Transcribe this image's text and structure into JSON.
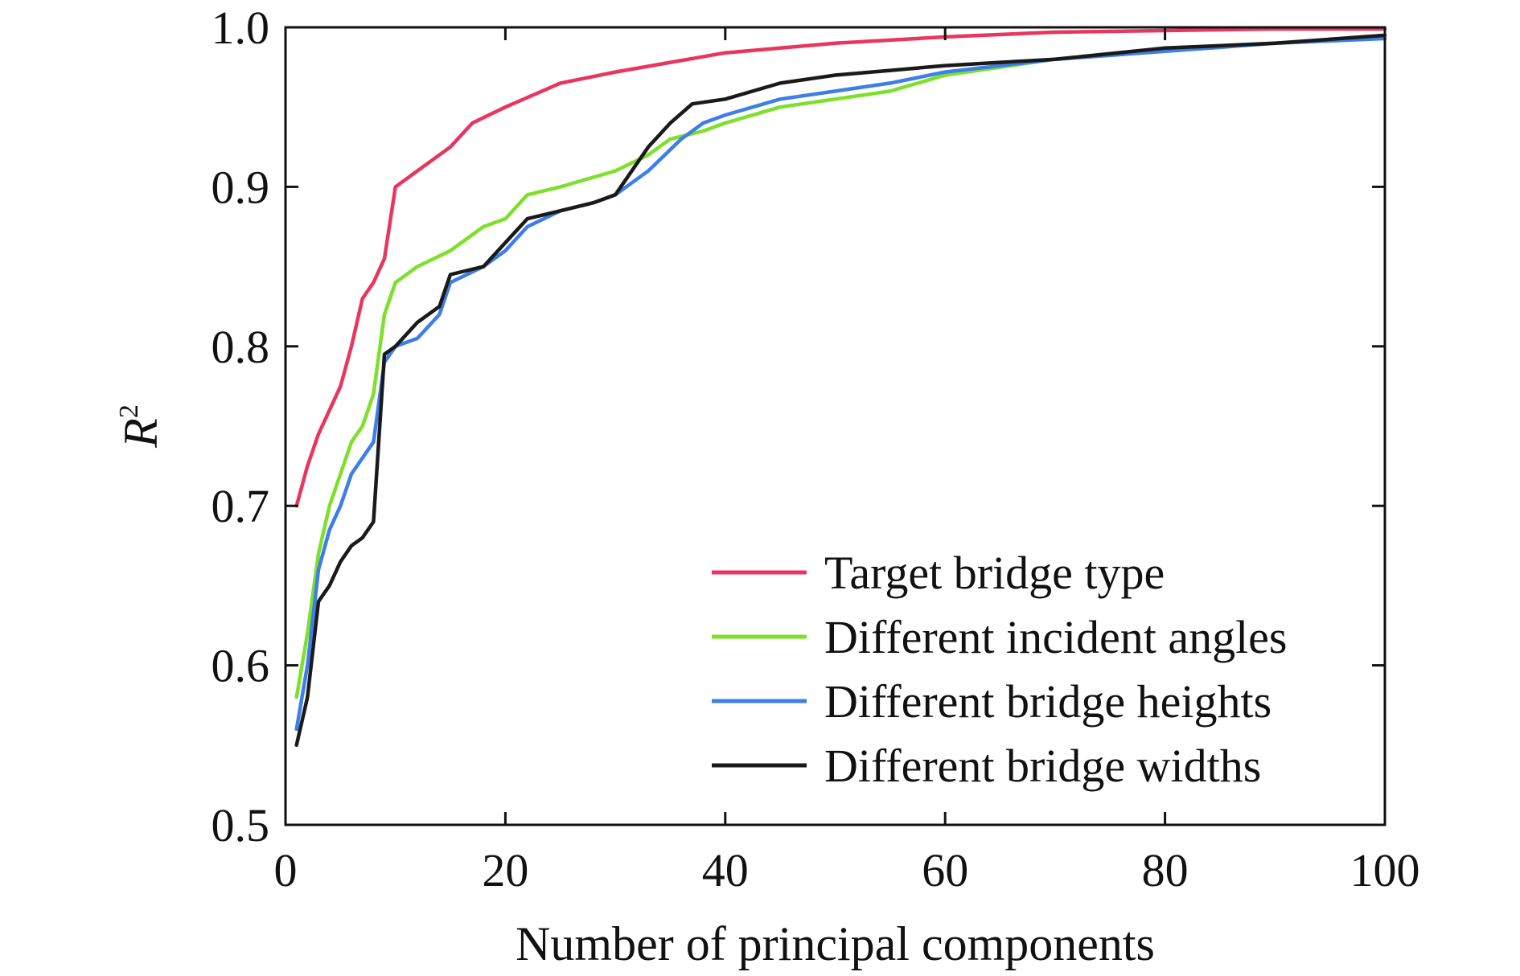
{
  "chart_data": {
    "type": "line",
    "xlabel": "Number of principal components",
    "ylabel_main": "R",
    "ylabel_sup": "2",
    "xlim": [
      0,
      100
    ],
    "ylim": [
      0.5,
      1.0
    ],
    "xticks": [
      0,
      20,
      40,
      60,
      80,
      100
    ],
    "xtick_labels": [
      "0",
      "20",
      "40",
      "60",
      "80",
      "100"
    ],
    "yticks": [
      0.5,
      0.6,
      0.7,
      0.8,
      0.9,
      1.0
    ],
    "ytick_labels": [
      "0.5",
      "0.6",
      "0.7",
      "0.8",
      "0.9",
      "1.0"
    ],
    "grid": false,
    "legend_position": "bottom-right",
    "series": [
      {
        "name": "Target bridge type",
        "color": "#e8365e",
        "points": [
          [
            1,
            0.7
          ],
          [
            2,
            0.725
          ],
          [
            3,
            0.745
          ],
          [
            4,
            0.76
          ],
          [
            5,
            0.775
          ],
          [
            6,
            0.8
          ],
          [
            7,
            0.83
          ],
          [
            8,
            0.84
          ],
          [
            9,
            0.855
          ],
          [
            10,
            0.9
          ],
          [
            12,
            0.91
          ],
          [
            15,
            0.925
          ],
          [
            17,
            0.94
          ],
          [
            20,
            0.95
          ],
          [
            25,
            0.965
          ],
          [
            30,
            0.972
          ],
          [
            35,
            0.978
          ],
          [
            40,
            0.984
          ],
          [
            50,
            0.99
          ],
          [
            60,
            0.994
          ],
          [
            70,
            0.997
          ],
          [
            80,
            0.998
          ],
          [
            90,
            0.999
          ],
          [
            100,
            0.999
          ]
        ]
      },
      {
        "name": "Different incident angles",
        "color": "#7ee02a",
        "points": [
          [
            1,
            0.58
          ],
          [
            2,
            0.62
          ],
          [
            3,
            0.67
          ],
          [
            4,
            0.7
          ],
          [
            5,
            0.72
          ],
          [
            6,
            0.74
          ],
          [
            7,
            0.75
          ],
          [
            8,
            0.77
          ],
          [
            9,
            0.82
          ],
          [
            10,
            0.84
          ],
          [
            12,
            0.85
          ],
          [
            15,
            0.86
          ],
          [
            18,
            0.875
          ],
          [
            20,
            0.88
          ],
          [
            22,
            0.895
          ],
          [
            25,
            0.9
          ],
          [
            30,
            0.91
          ],
          [
            33,
            0.92
          ],
          [
            35,
            0.93
          ],
          [
            38,
            0.935
          ],
          [
            40,
            0.94
          ],
          [
            45,
            0.95
          ],
          [
            50,
            0.955
          ],
          [
            55,
            0.96
          ],
          [
            60,
            0.97
          ],
          [
            70,
            0.98
          ],
          [
            80,
            0.985
          ],
          [
            90,
            0.99
          ],
          [
            100,
            0.993
          ]
        ]
      },
      {
        "name": "Different bridge heights",
        "color": "#3d7ee8",
        "points": [
          [
            1,
            0.56
          ],
          [
            2,
            0.6
          ],
          [
            3,
            0.66
          ],
          [
            4,
            0.685
          ],
          [
            5,
            0.7
          ],
          [
            6,
            0.72
          ],
          [
            7,
            0.73
          ],
          [
            8,
            0.74
          ],
          [
            9,
            0.79
          ],
          [
            10,
            0.8
          ],
          [
            12,
            0.805
          ],
          [
            14,
            0.82
          ],
          [
            15,
            0.84
          ],
          [
            18,
            0.85
          ],
          [
            20,
            0.86
          ],
          [
            22,
            0.875
          ],
          [
            25,
            0.885
          ],
          [
            28,
            0.89
          ],
          [
            30,
            0.895
          ],
          [
            33,
            0.91
          ],
          [
            36,
            0.93
          ],
          [
            38,
            0.94
          ],
          [
            40,
            0.945
          ],
          [
            45,
            0.955
          ],
          [
            50,
            0.96
          ],
          [
            55,
            0.965
          ],
          [
            60,
            0.972
          ],
          [
            70,
            0.98
          ],
          [
            80,
            0.985
          ],
          [
            90,
            0.99
          ],
          [
            100,
            0.993
          ]
        ]
      },
      {
        "name": "Different bridge widths",
        "color": "#1a1a1a",
        "points": [
          [
            1,
            0.55
          ],
          [
            2,
            0.58
          ],
          [
            3,
            0.64
          ],
          [
            4,
            0.65
          ],
          [
            5,
            0.665
          ],
          [
            6,
            0.675
          ],
          [
            7,
            0.68
          ],
          [
            8,
            0.69
          ],
          [
            9,
            0.795
          ],
          [
            10,
            0.8
          ],
          [
            12,
            0.815
          ],
          [
            14,
            0.825
          ],
          [
            15,
            0.845
          ],
          [
            18,
            0.85
          ],
          [
            20,
            0.865
          ],
          [
            22,
            0.88
          ],
          [
            25,
            0.885
          ],
          [
            28,
            0.89
          ],
          [
            30,
            0.895
          ],
          [
            33,
            0.925
          ],
          [
            35,
            0.94
          ],
          [
            37,
            0.952
          ],
          [
            40,
            0.955
          ],
          [
            45,
            0.965
          ],
          [
            50,
            0.97
          ],
          [
            55,
            0.973
          ],
          [
            60,
            0.976
          ],
          [
            65,
            0.978
          ],
          [
            70,
            0.98
          ],
          [
            80,
            0.987
          ],
          [
            90,
            0.99
          ],
          [
            100,
            0.995
          ]
        ]
      }
    ]
  }
}
